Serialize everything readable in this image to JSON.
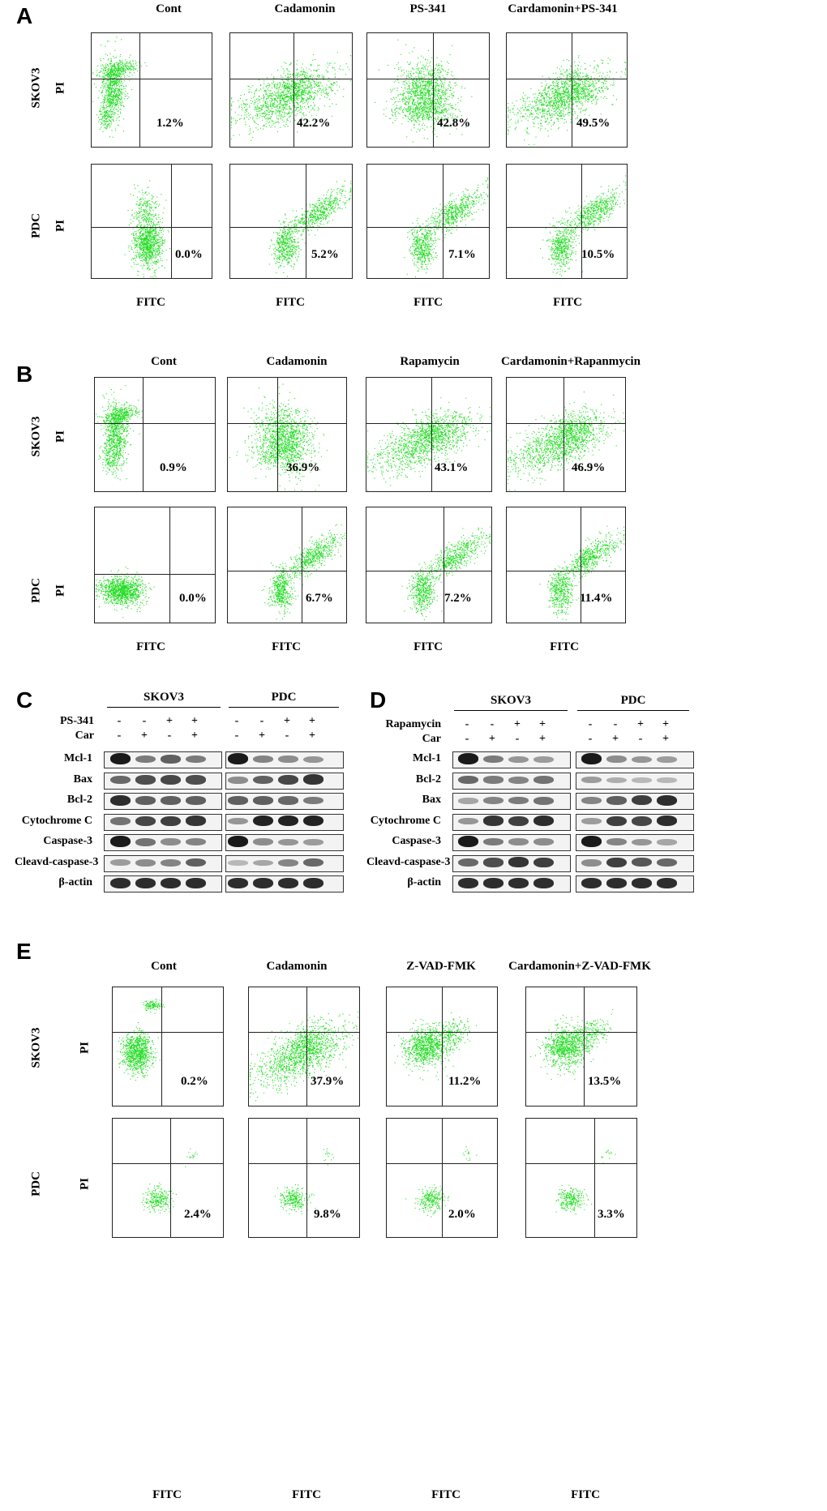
{
  "figure": {
    "A": {
      "letter": "A",
      "columns": [
        "Cont",
        "Cadamonin",
        "PS-341",
        "Cardamonin+PS-341"
      ],
      "rows": [
        {
          "cell": "SKOV3",
          "axis": "PI",
          "percents": [
            "1.2%",
            "42.2%",
            "42.8%",
            "49.5%"
          ]
        },
        {
          "cell": "PDC",
          "axis": "PI",
          "percents": [
            "0.0%",
            "5.2%",
            "7.1%",
            "10.5%"
          ]
        }
      ],
      "xaxis": "FITC"
    },
    "B": {
      "letter": "B",
      "columns": [
        "Cont",
        "Cadamonin",
        "Rapamycin",
        "Cardamonin+Rapanmycin"
      ],
      "rows": [
        {
          "cell": "SKOV3",
          "axis": "PI",
          "percents": [
            "0.9%",
            "36.9%",
            "43.1%",
            "46.9%"
          ]
        },
        {
          "cell": "PDC",
          "axis": "PI",
          "percents": [
            "0.0%",
            "6.7%",
            "7.2%",
            "11.4%"
          ]
        }
      ],
      "xaxis": "FITC"
    },
    "C": {
      "letter": "C",
      "groups": [
        "SKOV3",
        "PDC"
      ],
      "treatments": [
        {
          "name": "PS-341",
          "signs": [
            "-",
            "-",
            "+",
            "+"
          ]
        },
        {
          "name": "Car",
          "signs": [
            "-",
            "+",
            "-",
            "+"
          ]
        }
      ],
      "proteins": [
        "Mcl-1",
        "Bax",
        "Bcl-2",
        "Cytochrome C",
        "Caspase-3",
        "Cleavd-caspase-3",
        "β-actin"
      ]
    },
    "D": {
      "letter": "D",
      "groups": [
        "SKOV3",
        "PDC"
      ],
      "treatments": [
        {
          "name": "Rapamycin",
          "signs": [
            "-",
            "-",
            "+",
            "+"
          ]
        },
        {
          "name": "Car",
          "signs": [
            "-",
            "+",
            "-",
            "+"
          ]
        }
      ],
      "proteins": [
        "Mcl-1",
        "Bcl-2",
        "Bax",
        "Cytochrome C",
        "Caspase-3",
        "Cleavd-caspase-3",
        "β-actin"
      ]
    },
    "E": {
      "letter": "E",
      "columns": [
        "Cont",
        "Cadamonin",
        "Z-VAD-FMK",
        "Cardamonin+Z-VAD-FMK"
      ],
      "rows": [
        {
          "cell": "SKOV3",
          "axis": "PI",
          "percents": [
            "0.2%",
            "37.9%",
            "11.2%",
            "13.5%"
          ]
        },
        {
          "cell": "PDC",
          "axis": "PI",
          "percents": [
            "2.4%",
            "9.8%",
            "2.0%",
            "3.3%"
          ]
        }
      ],
      "xaxis": "FITC"
    }
  },
  "colors": {
    "dots": "#22dd22",
    "dots_dark": "#11aa11",
    "band": "#111111"
  }
}
